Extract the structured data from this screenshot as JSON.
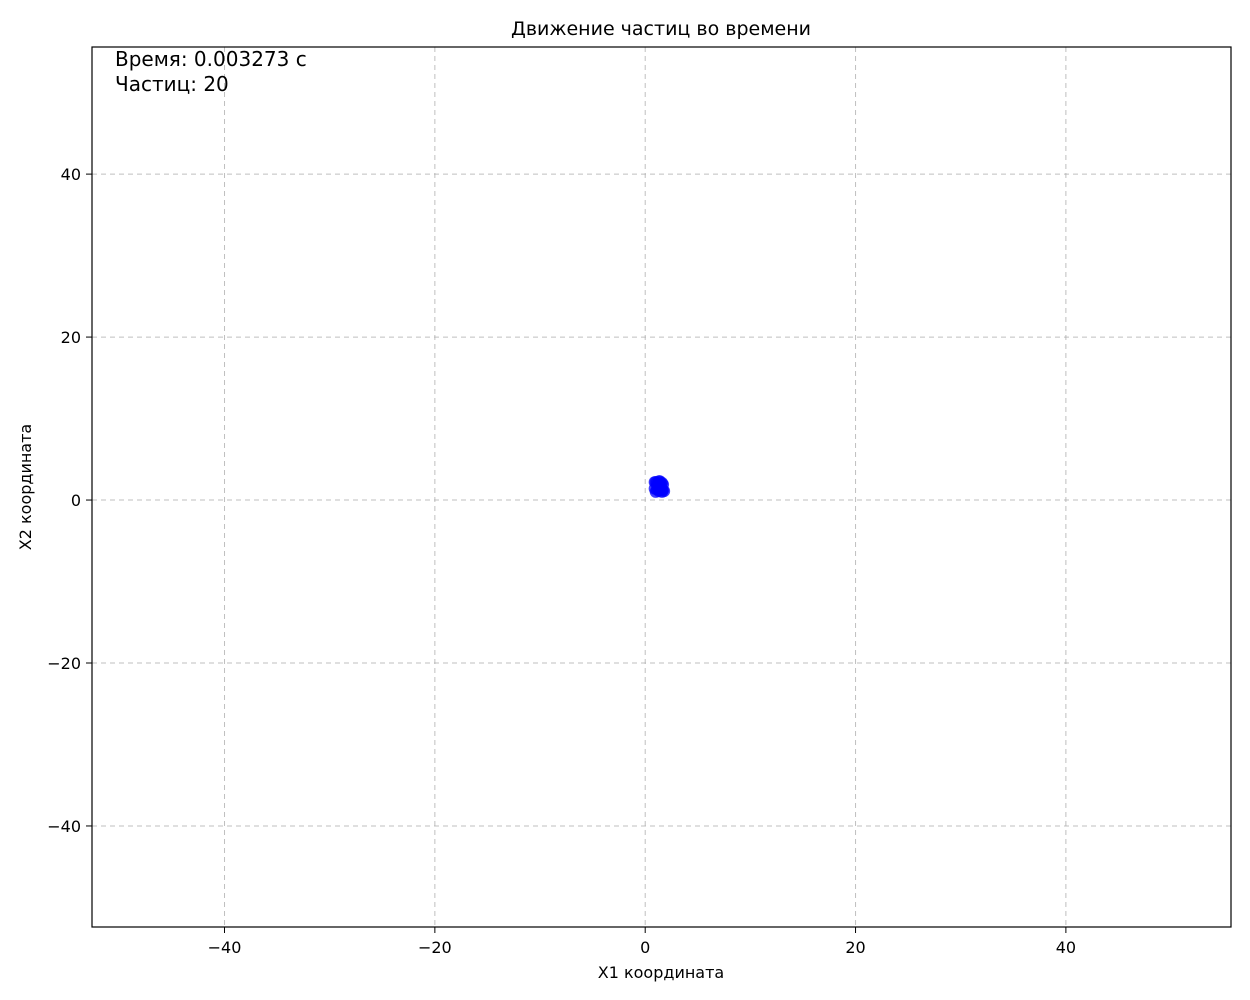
{
  "chart_data": {
    "type": "scatter",
    "title": "Движение частиц во времени",
    "xlabel": "X1 координата",
    "ylabel": "X2 координата",
    "xlim": [
      -52.6,
      55.7
    ],
    "ylim": [
      -52.4,
      55.6
    ],
    "xticks": [
      -40,
      -20,
      0,
      20,
      40
    ],
    "yticks": [
      -40,
      -20,
      0,
      20,
      40
    ],
    "xtick_labels": [
      "−40",
      "−20",
      "0",
      "20",
      "40"
    ],
    "ytick_labels": [
      "−40",
      "−20",
      "0",
      "20",
      "40"
    ],
    "grid": true,
    "annotations": {
      "time": "Время: 0.003273 с",
      "count": "Частиц: 20"
    },
    "series": [
      {
        "color": "#0000ff",
        "x": [
          1.0,
          1.3,
          1.6,
          1.2,
          1.5,
          0.9,
          1.7,
          1.1,
          1.4,
          1.8,
          1.0,
          1.3,
          1.6,
          1.2,
          1.5,
          0.9,
          1.7,
          1.1,
          1.4,
          1.6
        ],
        "y": [
          2.2,
          2.3,
          2.1,
          1.9,
          2.0,
          2.2,
          1.9,
          1.3,
          1.2,
          1.1,
          1.0,
          1.1,
          1.3,
          1.5,
          1.6,
          1.4,
          1.2,
          2.1,
          2.3,
          1.0
        ]
      }
    ]
  }
}
